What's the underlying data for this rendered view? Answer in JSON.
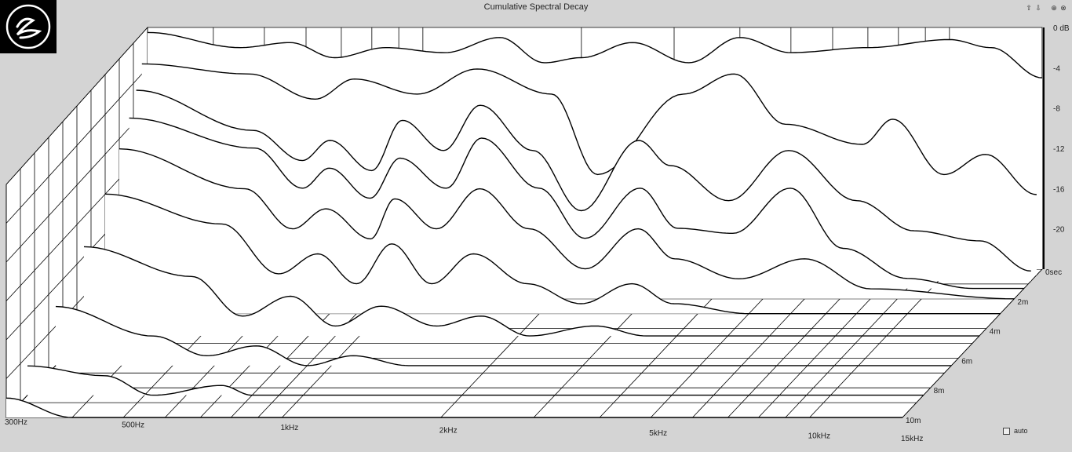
{
  "window": {
    "title": "Cumulative Spectral Decay"
  },
  "toolbar": {
    "icons": [
      "arrow-up-icon",
      "arrow-down-icon",
      "target-up-icon",
      "target-down-icon"
    ]
  },
  "auto_label": "auto",
  "chart_data": {
    "type": "waterfall",
    "title": "Cumulative Spectral Decay",
    "x_axis": {
      "scale": "log",
      "range": [
        "300Hz",
        "15kHz"
      ],
      "ticks": [
        "300Hz",
        "500Hz",
        "1kHz",
        "2kHz",
        "5kHz",
        "10kHz",
        "15kHz"
      ]
    },
    "z_axis": {
      "unit": "ms",
      "ticks": [
        "0sec",
        "2m",
        "4m",
        "6m",
        "8m",
        "10m"
      ]
    },
    "y_axis": {
      "unit": "dB",
      "range": [
        -24,
        0
      ],
      "ticks": [
        "0 dB",
        "-4",
        "-8",
        "-12",
        "-16",
        "-20"
      ]
    },
    "colors": {
      "background": "#d4d4d4",
      "fill": "#ffffff",
      "line": "#000000"
    },
    "slices": [
      {
        "time_ms": 0.0,
        "points": [
          [
            300,
            -0.5
          ],
          [
            450,
            -2
          ],
          [
            560,
            -1.5
          ],
          [
            680,
            -3
          ],
          [
            850,
            -2
          ],
          [
            1100,
            -2.5
          ],
          [
            1400,
            -1
          ],
          [
            1700,
            -3.5
          ],
          [
            2000,
            -3
          ],
          [
            2500,
            -1.5
          ],
          [
            3200,
            -3.5
          ],
          [
            4000,
            -1
          ],
          [
            5000,
            -2.5
          ],
          [
            7000,
            -2
          ],
          [
            10000,
            -1.2
          ],
          [
            12000,
            -2
          ],
          [
            15000,
            -5
          ]
        ]
      },
      {
        "time_ms": 0.4,
        "points": [
          [
            300,
            -3
          ],
          [
            480,
            -4
          ],
          [
            640,
            -6.5
          ],
          [
            760,
            -4.5
          ],
          [
            1000,
            -6
          ],
          [
            1300,
            -3.5
          ],
          [
            1800,
            -6
          ],
          [
            2200,
            -14
          ],
          [
            3200,
            -6
          ],
          [
            4000,
            -4
          ],
          [
            5000,
            -9
          ],
          [
            7000,
            -11
          ],
          [
            8000,
            -8.5
          ],
          [
            10000,
            -14
          ],
          [
            12000,
            -12
          ],
          [
            15000,
            -16
          ]
        ]
      },
      {
        "time_ms": 0.8,
        "points": [
          [
            300,
            -5
          ],
          [
            500,
            -9
          ],
          [
            620,
            -12
          ],
          [
            700,
            -10
          ],
          [
            840,
            -13
          ],
          [
            960,
            -8
          ],
          [
            1150,
            -11
          ],
          [
            1350,
            -6.5
          ],
          [
            1700,
            -11
          ],
          [
            2100,
            -17
          ],
          [
            2700,
            -10
          ],
          [
            3100,
            -12.5
          ],
          [
            4000,
            -16
          ],
          [
            5200,
            -11
          ],
          [
            7000,
            -16
          ],
          [
            9000,
            -19
          ],
          [
            12000,
            -20
          ],
          [
            15000,
            -23
          ]
        ]
      },
      {
        "time_ms": 1.3,
        "points": [
          [
            300,
            -7
          ],
          [
            520,
            -10
          ],
          [
            640,
            -14
          ],
          [
            720,
            -12
          ],
          [
            860,
            -15
          ],
          [
            980,
            -11
          ],
          [
            1200,
            -14
          ],
          [
            1400,
            -9
          ],
          [
            1800,
            -14
          ],
          [
            2200,
            -19
          ],
          [
            2800,
            -14
          ],
          [
            3300,
            -18
          ],
          [
            4200,
            -18.5
          ],
          [
            5400,
            -14
          ],
          [
            6800,
            -20
          ],
          [
            9000,
            -23
          ],
          [
            12000,
            -24
          ],
          [
            15000,
            -24
          ]
        ]
      },
      {
        "time_ms": 2.0,
        "points": [
          [
            300,
            -9
          ],
          [
            520,
            -13
          ],
          [
            640,
            -17
          ],
          [
            740,
            -15
          ],
          [
            900,
            -18
          ],
          [
            1000,
            -14
          ],
          [
            1200,
            -17
          ],
          [
            1450,
            -13
          ],
          [
            1800,
            -17
          ],
          [
            2300,
            -21
          ],
          [
            2900,
            -17
          ],
          [
            3400,
            -20
          ],
          [
            4500,
            -22
          ],
          [
            6000,
            -20
          ],
          [
            8000,
            -23
          ],
          [
            15000,
            -24
          ]
        ]
      },
      {
        "time_ms": 3.0,
        "points": [
          [
            300,
            -12
          ],
          [
            500,
            -15
          ],
          [
            640,
            -20
          ],
          [
            760,
            -18
          ],
          [
            900,
            -21
          ],
          [
            1050,
            -17
          ],
          [
            1250,
            -21
          ],
          [
            1500,
            -18
          ],
          [
            1900,
            -21
          ],
          [
            2400,
            -23
          ],
          [
            3000,
            -21
          ],
          [
            3600,
            -23
          ],
          [
            5000,
            -24
          ],
          [
            15000,
            -24
          ]
        ]
      },
      {
        "time_ms": 4.5,
        "points": [
          [
            300,
            -15
          ],
          [
            480,
            -18
          ],
          [
            600,
            -22
          ],
          [
            740,
            -20
          ],
          [
            900,
            -23
          ],
          [
            1100,
            -21
          ],
          [
            1400,
            -23
          ],
          [
            1700,
            -22
          ],
          [
            2100,
            -24
          ],
          [
            2800,
            -23
          ],
          [
            3500,
            -24
          ],
          [
            15000,
            -24
          ]
        ]
      },
      {
        "time_ms": 6.5,
        "points": [
          [
            300,
            -18
          ],
          [
            460,
            -21
          ],
          [
            580,
            -23
          ],
          [
            720,
            -22
          ],
          [
            900,
            -24
          ],
          [
            1100,
            -23
          ],
          [
            1400,
            -24
          ],
          [
            15000,
            -24
          ]
        ]
      },
      {
        "time_ms": 8.5,
        "points": [
          [
            300,
            -21
          ],
          [
            420,
            -22
          ],
          [
            520,
            -24
          ],
          [
            700,
            -23
          ],
          [
            800,
            -24
          ],
          [
            15000,
            -24
          ]
        ]
      },
      {
        "time_ms": 10.0,
        "points": [
          [
            300,
            -22
          ],
          [
            400,
            -24
          ],
          [
            15000,
            -24
          ]
        ]
      }
    ]
  }
}
